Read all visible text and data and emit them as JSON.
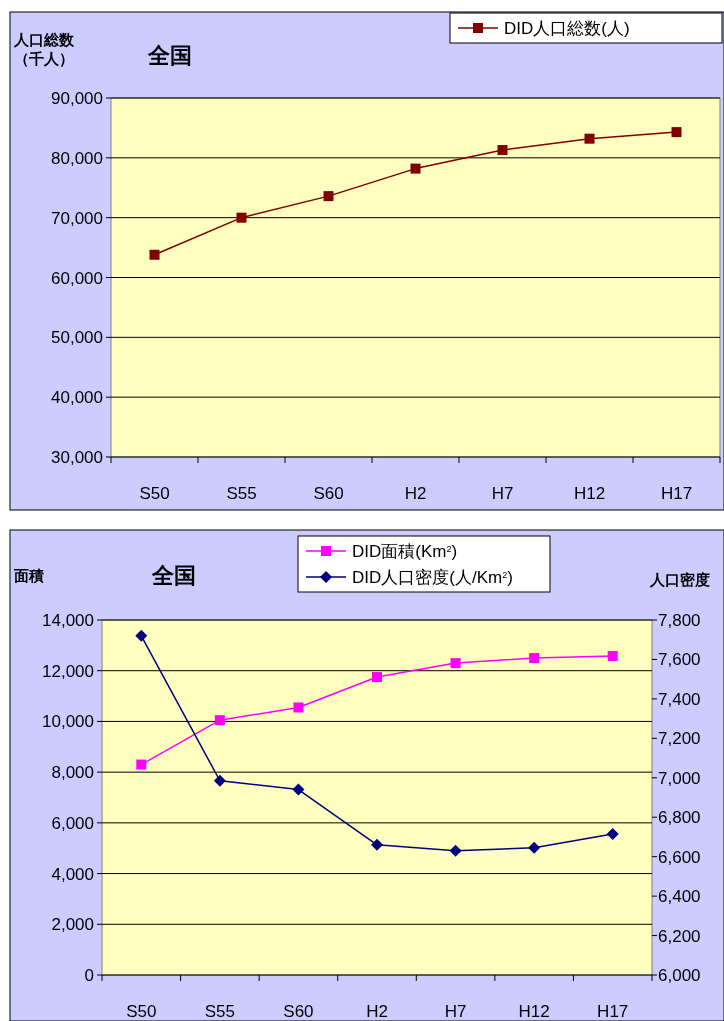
{
  "chart_data": [
    {
      "type": "line",
      "title": "全国",
      "ylabel": "人口総数（千人）",
      "categories": [
        "S50",
        "S55",
        "S60",
        "H2",
        "H7",
        "H12",
        "H17"
      ],
      "series": [
        {
          "name": "DID人口総数(人)",
          "color": "#800000",
          "marker": "square",
          "values": [
            63800,
            70000,
            73600,
            78200,
            81300,
            83200,
            84300
          ]
        }
      ],
      "ylim": [
        30000,
        90000
      ],
      "yticks": [
        {
          "value": 30000,
          "label": "30,000"
        },
        {
          "value": 40000,
          "label": "40,000"
        },
        {
          "value": 50000,
          "label": "50,000"
        },
        {
          "value": 60000,
          "label": "60,000"
        },
        {
          "value": 70000,
          "label": "70,000"
        },
        {
          "value": 80000,
          "label": "80,000"
        },
        {
          "value": 90000,
          "label": "90,000"
        }
      ],
      "grid": "y",
      "legend": "top right"
    },
    {
      "type": "line",
      "title": "全国",
      "ylabel": "面積",
      "y2label": "人口密度",
      "categories": [
        "S50",
        "S55",
        "S60",
        "H2",
        "H7",
        "H12",
        "H17"
      ],
      "series": [
        {
          "name": "DID面積(Km$^{2}$)",
          "color": "#ff00ff",
          "marker": "square",
          "values": [
            8300,
            10050,
            10550,
            11750,
            12300,
            12500,
            12580
          ]
        },
        {
          "name": "DID人口密度(人/Km$^{2}$)",
          "color": "#000080",
          "marker": "diamond",
          "axis": "y2",
          "values": [
            7720,
            6985,
            6940,
            6660,
            6630,
            6645,
            6715
          ]
        }
      ],
      "ylim": [
        0,
        14000
      ],
      "yticks": [
        0,
        {
          "value": 2000,
          "label": "2,000"
        },
        {
          "value": 4000,
          "label": "4,000"
        },
        {
          "value": 6000,
          "label": "6,000"
        },
        {
          "value": 8000,
          "label": "8,000"
        },
        {
          "value": 10000,
          "label": "10,000"
        },
        {
          "value": 12000,
          "label": "12,000"
        },
        {
          "value": 14000,
          "label": "14,000"
        }
      ],
      "y2lim": [
        6000,
        7800
      ],
      "y2ticks": [
        {
          "value": 6000,
          "label": "6,000"
        },
        {
          "value": 6200,
          "label": "6,200"
        },
        {
          "value": 6400,
          "label": "6,400"
        },
        {
          "value": 6600,
          "label": "6,600"
        },
        {
          "value": 6800,
          "label": "6,800"
        },
        {
          "value": 7000,
          "label": "7,000"
        },
        {
          "value": 7200,
          "label": "7,200"
        },
        {
          "value": 7400,
          "label": "7,400"
        },
        {
          "value": 7600,
          "label": "7,600"
        },
        {
          "value": 7800,
          "label": "7,800"
        }
      ],
      "grid": "y",
      "legend": "top"
    }
  ]
}
